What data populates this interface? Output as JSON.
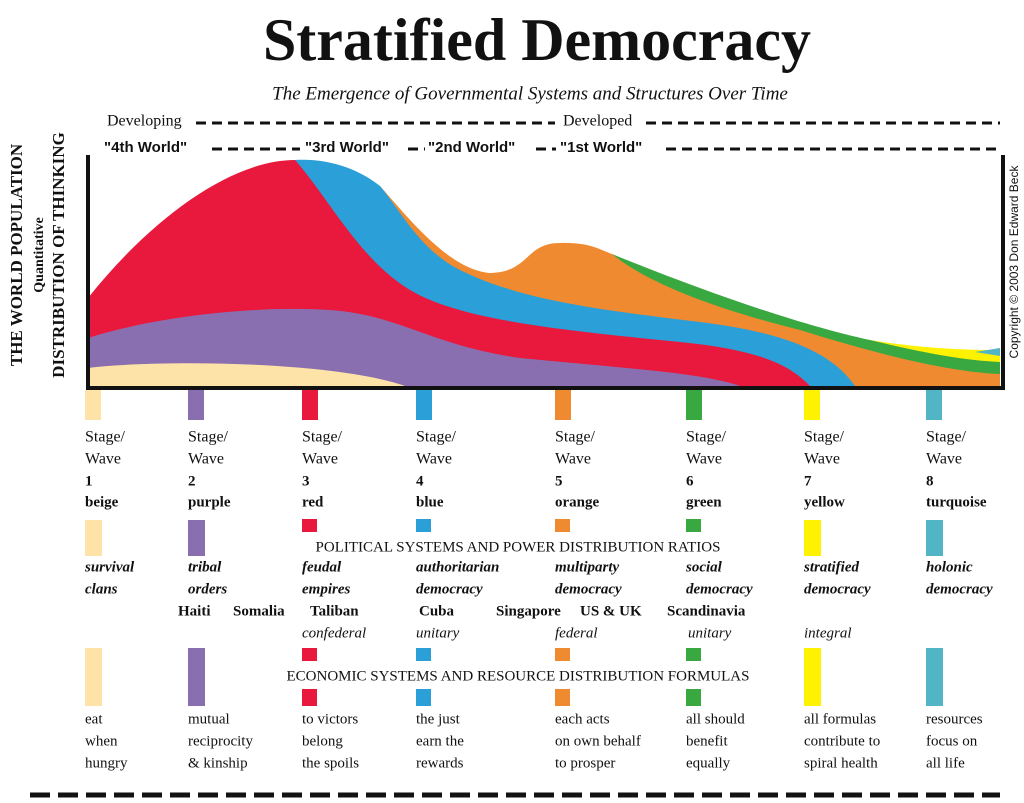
{
  "title": "Stratified Democracy",
  "subtitle": "The Emergence of Governmental Systems and Structures Over Time",
  "axis_label": [
    "THE WORLD POPULATION",
    "Quantitative",
    "DISTRIBUTION OF THINKING"
  ],
  "copyright": "Copyright © 2003 Don Edward Beck",
  "timeline": {
    "developing": "Developing",
    "developed": "Developed"
  },
  "worlds": [
    "\"4th World\"",
    "\"3rd World\"",
    "\"2nd World\"",
    "\"1st World\""
  ],
  "political_heading": "POLITICAL SYSTEMS AND POWER DISTRIBUTION RATIOS",
  "economic_heading": "ECONOMIC SYSTEMS AND RESOURCE DISTRIBUTION FORMULAS",
  "stages": [
    {
      "label": [
        "Stage/",
        "Wave"
      ],
      "number": "1",
      "color_name": "beige",
      "color": "#fde3a7",
      "political": [
        "survival",
        "clans"
      ],
      "economic": [
        "eat",
        "when",
        "hungry"
      ]
    },
    {
      "label": [
        "Stage/",
        "Wave"
      ],
      "number": "2",
      "color_name": "purple",
      "color": "#8a6fb0",
      "political": [
        "tribal",
        "orders"
      ],
      "economic": [
        "mutual",
        "reciprocity",
        "& kinship"
      ]
    },
    {
      "label": [
        "Stage/",
        "Wave"
      ],
      "number": "3",
      "color_name": "red",
      "color": "#e8193c",
      "political": [
        "feudal",
        "empires"
      ],
      "economic": [
        "to victors",
        "belong",
        "the spoils"
      ]
    },
    {
      "label": [
        "Stage/",
        "Wave"
      ],
      "number": "4",
      "color_name": "blue",
      "color": "#2a9fd8",
      "political": [
        "authoritarian",
        "democracy"
      ],
      "economic": [
        "the just",
        "earn the",
        "rewards"
      ]
    },
    {
      "label": [
        "Stage/",
        "Wave"
      ],
      "number": "5",
      "color_name": "orange",
      "color": "#f08a30",
      "political": [
        "multiparty",
        "democracy"
      ],
      "economic": [
        "each acts",
        "on own behalf",
        "to prosper"
      ]
    },
    {
      "label": [
        "Stage/",
        "Wave"
      ],
      "number": "6",
      "color_name": "green",
      "color": "#3aa840",
      "political": [
        "social",
        "democracy"
      ],
      "economic": [
        "all should",
        "benefit",
        "equally"
      ]
    },
    {
      "label": [
        "Stage/",
        "Wave"
      ],
      "number": "7",
      "color_name": "yellow",
      "color": "#fff200",
      "political": [
        "stratified",
        "democracy"
      ],
      "economic": [
        "all formulas",
        "contribute to",
        "spiral health"
      ]
    },
    {
      "label": [
        "Stage/",
        "Wave"
      ],
      "number": "8",
      "color_name": "turquoise",
      "color": "#52b5c6",
      "political": [
        "holonic",
        "democracy"
      ],
      "economic": [
        "resources",
        "focus on",
        "all life"
      ]
    }
  ],
  "countries": [
    "Haiti",
    "Somalia",
    "Taliban",
    "Cuba",
    "Singapore",
    "US & UK",
    "Scandinavia"
  ],
  "system_types": [
    "confederal",
    "unitary",
    "federal",
    "unitary",
    "integral"
  ]
}
